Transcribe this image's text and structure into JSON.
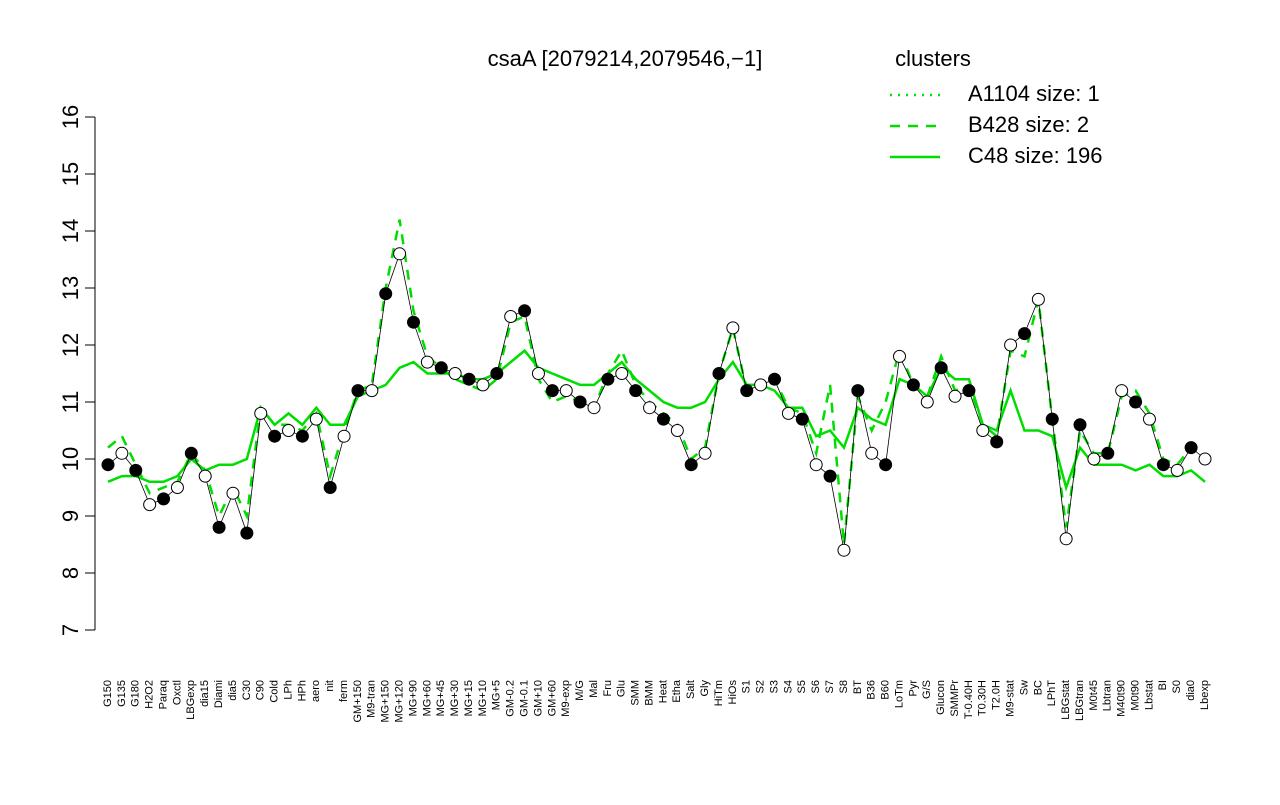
{
  "chart_data": {
    "type": "line",
    "title": "csaA [2079214,2079546,−1]",
    "legend_title": "clusters",
    "legend_color": "#00dd00",
    "categories": [
      "G150",
      "G135",
      "G180",
      "H2O2",
      "Paraq",
      "Oxctl",
      "LBGexp",
      "dia15",
      "Diami",
      "dia5",
      "C30",
      "C90",
      "Cold",
      "LPh",
      "HPh",
      "aero",
      "nit",
      "ferm",
      "GM+150",
      "M9-tran",
      "MG+150",
      "MG+120",
      "MG+90",
      "MG+60",
      "MG+45",
      "MG+30",
      "MG+15",
      "MG+10",
      "MG+5",
      "GM-0.2",
      "GM-0.1",
      "GM+10",
      "GM+60",
      "M9-exp",
      "M/G",
      "Mal",
      "Fru",
      "Glu",
      "SMM",
      "BMM",
      "Heat",
      "Etha",
      "Salt",
      "Gly",
      "HiTm",
      "HiOs",
      "S1",
      "S2",
      "S3",
      "S4",
      "S5",
      "S6",
      "S7",
      "S8",
      "BT",
      "B36",
      "B60",
      "LoTm",
      "Pyr",
      "G/S",
      "Glucon",
      "SMMPr",
      "T-0.40H",
      "T0.30H",
      "T2.0H",
      "M9-stat",
      "Sw",
      "BC",
      "LPhT",
      "LBGstat",
      "LBGtran",
      "M0t45",
      "Lbtran",
      "M40t90",
      "M0t90",
      "Lbstat",
      "BI",
      "S0",
      "dia0",
      "Lbexp"
    ],
    "values": [
      9.9,
      10.1,
      9.8,
      9.2,
      9.3,
      9.5,
      10.1,
      9.7,
      8.8,
      9.4,
      8.7,
      10.8,
      10.4,
      10.5,
      10.4,
      10.7,
      9.5,
      10.4,
      11.2,
      11.2,
      12.9,
      13.6,
      12.4,
      11.7,
      11.6,
      11.5,
      11.4,
      11.3,
      11.5,
      12.5,
      12.6,
      11.5,
      11.2,
      11.2,
      11.0,
      10.9,
      11.4,
      11.5,
      11.2,
      10.9,
      10.7,
      10.5,
      9.9,
      10.1,
      11.5,
      12.3,
      11.2,
      11.3,
      11.4,
      10.8,
      10.7,
      9.9,
      9.7,
      8.4,
      11.2,
      10.1,
      9.9,
      11.8,
      11.3,
      11.0,
      11.6,
      11.1,
      11.2,
      10.5,
      10.3,
      12.0,
      12.2,
      12.8,
      10.7,
      8.6,
      10.6,
      10.0,
      10.1,
      11.2,
      11.0,
      10.7,
      9.9,
      9.8,
      10.2,
      10.0
    ],
    "point_fills": [
      "black",
      "white"
    ],
    "series": [
      {
        "name": "A1104 size: 1",
        "color": "#00dd00",
        "dash": "dotted",
        "values": [
          null,
          null,
          null,
          null,
          null,
          null,
          null,
          null,
          null,
          null,
          null,
          null,
          null,
          null,
          null,
          null,
          null,
          null,
          null,
          null,
          null,
          null,
          null,
          null,
          null,
          null,
          null,
          null,
          null,
          null,
          null,
          null,
          null,
          null,
          null,
          null,
          null,
          null,
          null,
          null,
          null,
          null,
          null,
          null,
          null,
          null,
          null,
          null,
          null,
          null,
          null,
          null,
          null,
          null,
          null,
          null,
          null,
          null,
          null,
          null,
          null,
          null,
          null,
          null,
          null,
          null,
          null,
          null,
          null,
          null,
          null,
          null,
          null,
          null,
          null,
          null,
          null,
          null,
          null,
          null
        ]
      },
      {
        "name": "B428 size: 2",
        "color": "#00dd00",
        "dash": "dashed",
        "values": [
          10.2,
          10.4,
          9.9,
          9.4,
          9.5,
          9.6,
          10.1,
          9.8,
          9.0,
          9.5,
          9.0,
          10.9,
          10.6,
          10.6,
          10.5,
          10.8,
          9.7,
          10.5,
          11.2,
          11.3,
          13.0,
          14.2,
          12.6,
          11.8,
          11.6,
          11.4,
          11.3,
          11.2,
          11.4,
          12.4,
          12.5,
          11.4,
          11.0,
          11.1,
          11.0,
          10.9,
          11.5,
          11.9,
          11.3,
          11.0,
          10.8,
          10.6,
          10.0,
          10.2,
          11.5,
          12.3,
          11.2,
          11.3,
          11.4,
          10.9,
          10.8,
          10.1,
          11.3,
          8.5,
          11.1,
          10.5,
          11.0,
          11.9,
          11.3,
          11.1,
          11.8,
          11.2,
          11.3,
          10.6,
          10.4,
          11.9,
          11.8,
          12.8,
          10.7,
          8.8,
          10.5,
          10.1,
          10.1,
          11.1,
          11.2,
          10.8,
          10.0,
          9.9,
          10.2,
          10.0
        ]
      },
      {
        "name": "C48 size: 196",
        "color": "#00dd00",
        "dash": "solid",
        "values": [
          9.6,
          9.7,
          9.7,
          9.6,
          9.6,
          9.7,
          10.0,
          9.8,
          9.9,
          9.9,
          10.0,
          10.9,
          10.6,
          10.8,
          10.6,
          10.9,
          10.6,
          10.6,
          11.1,
          11.2,
          11.3,
          11.6,
          11.7,
          11.5,
          11.5,
          11.5,
          11.4,
          11.4,
          11.5,
          11.7,
          11.9,
          11.6,
          11.5,
          11.4,
          11.3,
          11.3,
          11.5,
          11.7,
          11.4,
          11.2,
          11.0,
          10.9,
          10.9,
          11.0,
          11.4,
          11.7,
          11.3,
          11.3,
          11.2,
          10.9,
          10.9,
          10.4,
          10.5,
          10.2,
          10.9,
          10.7,
          10.6,
          11.4,
          11.3,
          11.1,
          11.6,
          11.4,
          11.4,
          10.6,
          10.5,
          11.2,
          10.5,
          10.5,
          10.4,
          9.5,
          10.2,
          9.9,
          9.9,
          9.9,
          9.8,
          9.9,
          9.7,
          9.7,
          9.8,
          9.6
        ]
      }
    ],
    "ylim": [
      7,
      16
    ],
    "yticks": [
      7,
      8,
      9,
      10,
      11,
      12,
      13,
      14,
      15,
      16
    ]
  }
}
